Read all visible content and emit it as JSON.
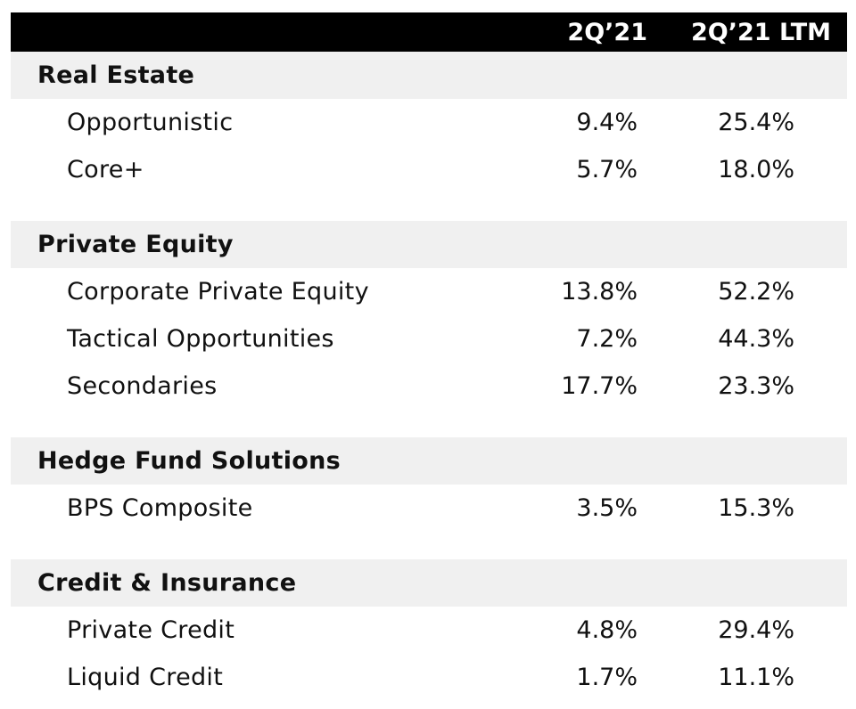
{
  "header": {
    "col1": "2Q’21",
    "col2": "2Q’21 LTM"
  },
  "sections": [
    {
      "title": "Real Estate",
      "rows": [
        {
          "label": "Opportunistic",
          "v1": "9.4%",
          "v2": "25.4%"
        },
        {
          "label": "Core+",
          "v1": "5.7%",
          "v2": "18.0%"
        }
      ]
    },
    {
      "title": "Private Equity",
      "rows": [
        {
          "label": "Corporate Private Equity",
          "v1": "13.8%",
          "v2": "52.2%"
        },
        {
          "label": "Tactical Opportunities",
          "v1": "7.2%",
          "v2": "44.3%"
        },
        {
          "label": "Secondaries",
          "v1": "17.7%",
          "v2": "23.3%"
        }
      ]
    },
    {
      "title": "Hedge Fund Solutions",
      "rows": [
        {
          "label": "BPS Composite",
          "v1": "3.5%",
          "v2": "15.3%"
        }
      ]
    },
    {
      "title": "Credit & Insurance",
      "rows": [
        {
          "label": "Private Credit",
          "v1": "4.8%",
          "v2": "29.4%"
        },
        {
          "label": "Liquid Credit",
          "v1": "1.7%",
          "v2": "11.1%"
        }
      ]
    }
  ]
}
